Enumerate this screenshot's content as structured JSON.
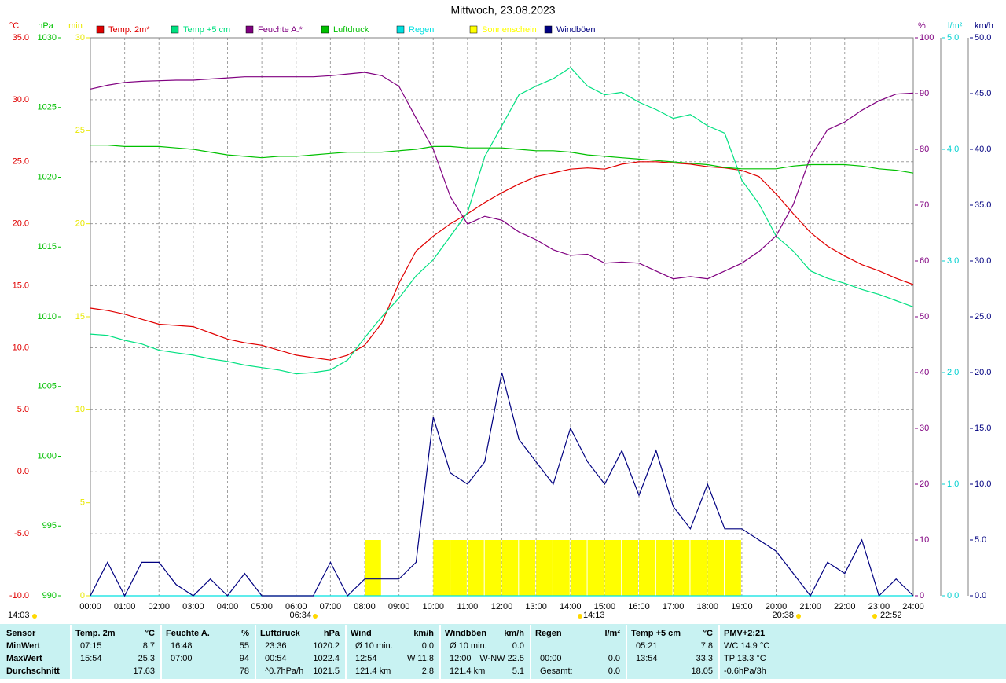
{
  "chart_data": {
    "type": "multi",
    "title": "Mittwoch, 23.08.2023",
    "xlim": [
      0,
      24
    ],
    "xticks": [
      {
        "value": 0,
        "label": "00:00"
      },
      {
        "value": 1,
        "label": "01:00"
      },
      {
        "value": 2,
        "label": "02:00"
      },
      {
        "value": 3,
        "label": "03:00"
      },
      {
        "value": 4,
        "label": "04:00"
      },
      {
        "value": 5,
        "label": "05:00"
      },
      {
        "value": 6,
        "label": "06:00"
      },
      {
        "value": 7,
        "label": "07:00"
      },
      {
        "value": 8,
        "label": "08:00"
      },
      {
        "value": 9,
        "label": "09:00"
      },
      {
        "value": 10,
        "label": "10:00"
      },
      {
        "value": 11,
        "label": "11:00"
      },
      {
        "value": 12,
        "label": "12:00"
      },
      {
        "value": 13,
        "label": "13:00"
      },
      {
        "value": 14,
        "label": "14:00"
      },
      {
        "value": 15,
        "label": "15:00"
      },
      {
        "value": 16,
        "label": "16:00"
      },
      {
        "value": 17,
        "label": "17:00"
      },
      {
        "value": 18,
        "label": "18:00"
      },
      {
        "value": 19,
        "label": "19:00"
      },
      {
        "value": 20,
        "label": "20:00"
      },
      {
        "value": 21,
        "label": "21:00"
      },
      {
        "value": 22,
        "label": "22:00"
      },
      {
        "value": 23,
        "label": "23:00"
      },
      {
        "value": 24,
        "label": "24:00"
      }
    ],
    "grid": true,
    "axes": {
      "temp": {
        "label": "°C",
        "color": "#e00000",
        "lim": [
          -10,
          35
        ],
        "ticks": [
          {
            "value": -10,
            "label": "-10.0"
          },
          {
            "value": -5,
            "label": "-5.0"
          },
          {
            "value": 0,
            "label": "0.0"
          },
          {
            "value": 5,
            "label": "5.0"
          },
          {
            "value": 10,
            "label": "10.0"
          },
          {
            "value": 15,
            "label": "15.0"
          },
          {
            "value": 20,
            "label": "20.0"
          },
          {
            "value": 25,
            "label": "25.0"
          },
          {
            "value": 30,
            "label": "30.0"
          },
          {
            "value": 35,
            "label": "35.0"
          }
        ]
      },
      "hpa": {
        "label": "hPa",
        "color": "#00c000",
        "lim": [
          990,
          1030
        ],
        "ticks": [
          990,
          995,
          1000,
          1005,
          1010,
          1015,
          1020,
          1025,
          1030
        ]
      },
      "min": {
        "label": "min",
        "color": "#e8e800",
        "lim": [
          0,
          30
        ],
        "ticks": [
          0,
          5,
          10,
          15,
          20,
          25,
          30
        ]
      },
      "pct": {
        "label": "%",
        "color": "#800080",
        "lim": [
          0,
          100
        ],
        "ticks": [
          0,
          10,
          20,
          30,
          40,
          50,
          60,
          70,
          80,
          90,
          100
        ]
      },
      "rain": {
        "label": "l/m²",
        "color": "#00d0d0",
        "lim": [
          0,
          5
        ],
        "ticks": [
          {
            "value": 0,
            "label": "0.0"
          },
          {
            "value": 1,
            "label": "1.0"
          },
          {
            "value": 2,
            "label": "2.0"
          },
          {
            "value": 3,
            "label": "3.0"
          },
          {
            "value": 4,
            "label": "4.0"
          },
          {
            "value": 5,
            "label": "5.0"
          }
        ]
      },
      "wind": {
        "label": "km/h",
        "color": "#000080",
        "lim": [
          0,
          50
        ],
        "ticks": [
          {
            "value": 0,
            "label": "0.0"
          },
          {
            "value": 5,
            "label": "5.0"
          },
          {
            "value": 10,
            "label": "10.0"
          },
          {
            "value": 15,
            "label": "15.0"
          },
          {
            "value": 20,
            "label": "20.0"
          },
          {
            "value": 25,
            "label": "25.0"
          },
          {
            "value": 30,
            "label": "30.0"
          },
          {
            "value": 35,
            "label": "35.0"
          },
          {
            "value": 40,
            "label": "40.0"
          },
          {
            "value": 45,
            "label": "45.0"
          },
          {
            "value": 50,
            "label": "50.0"
          }
        ]
      }
    },
    "x": [
      0,
      0.5,
      1,
      1.5,
      2,
      2.5,
      3,
      3.5,
      4,
      4.5,
      5,
      5.5,
      6,
      6.5,
      7,
      7.5,
      8,
      8.5,
      9,
      9.5,
      10,
      10.5,
      11,
      11.5,
      12,
      12.5,
      13,
      13.5,
      14,
      14.5,
      15,
      15.5,
      16,
      16.5,
      17,
      17.5,
      18,
      18.5,
      19,
      19.5,
      20,
      20.5,
      21,
      21.5,
      22,
      22.5,
      23,
      23.5,
      24
    ],
    "series": [
      {
        "name": "Temp. 2m*",
        "color": "#e00000",
        "axis": "temp",
        "kind": "line",
        "values": [
          13.2,
          13.0,
          12.7,
          12.3,
          11.9,
          11.8,
          11.7,
          11.2,
          10.7,
          10.4,
          10.2,
          9.8,
          9.4,
          9.2,
          9.0,
          9.4,
          10.2,
          12.0,
          15.2,
          17.8,
          19.0,
          20.0,
          20.8,
          21.7,
          22.5,
          23.2,
          23.8,
          24.1,
          24.4,
          24.5,
          24.4,
          24.8,
          25.0,
          25.0,
          24.9,
          24.8,
          24.6,
          24.5,
          24.3,
          23.8,
          22.4,
          20.8,
          19.3,
          18.2,
          17.4,
          16.7,
          16.2,
          15.6,
          15.1
        ]
      },
      {
        "name": "Temp +5 cm",
        "color": "#00e080",
        "axis": "temp",
        "kind": "line",
        "values": [
          11.1,
          11.0,
          10.6,
          10.3,
          9.8,
          9.6,
          9.4,
          9.1,
          8.9,
          8.6,
          8.4,
          8.2,
          7.9,
          8.0,
          8.2,
          9.0,
          10.8,
          12.5,
          14.0,
          15.8,
          17.1,
          19.0,
          20.9,
          25.4,
          27.9,
          30.4,
          31.1,
          31.7,
          32.6,
          31.1,
          30.4,
          30.6,
          29.8,
          29.2,
          28.5,
          28.8,
          27.9,
          27.3,
          23.5,
          21.6,
          19.0,
          17.8,
          16.2,
          15.6,
          15.2,
          14.7,
          14.3,
          13.8,
          13.3
        ]
      },
      {
        "name": "Feuchte A.*",
        "color": "#800080",
        "axis": "pct",
        "kind": "line",
        "values": [
          90.8,
          91.5,
          92.0,
          92.2,
          92.3,
          92.4,
          92.4,
          92.6,
          92.8,
          93.0,
          93.0,
          93.0,
          93.0,
          93.0,
          93.2,
          93.5,
          93.8,
          93.2,
          91.3,
          85.6,
          80.0,
          71.5,
          66.6,
          68.0,
          67.3,
          65.2,
          63.8,
          62.0,
          61.0,
          61.2,
          59.6,
          59.8,
          59.6,
          58.2,
          56.8,
          57.2,
          56.8,
          58.2,
          59.6,
          61.7,
          64.5,
          70.1,
          78.6,
          83.5,
          84.9,
          87.0,
          88.7,
          89.9,
          90.1
        ]
      },
      {
        "name": "Luftdruck",
        "color": "#00c000",
        "axis": "hpa",
        "kind": "line",
        "values": [
          1022.3,
          1022.3,
          1022.2,
          1022.2,
          1022.2,
          1022.1,
          1022.0,
          1021.8,
          1021.6,
          1021.5,
          1021.4,
          1021.5,
          1021.5,
          1021.6,
          1021.7,
          1021.8,
          1021.8,
          1021.8,
          1021.9,
          1022.0,
          1022.2,
          1022.2,
          1022.1,
          1022.1,
          1022.1,
          1022.0,
          1021.9,
          1021.9,
          1021.8,
          1021.6,
          1021.5,
          1021.4,
          1021.3,
          1021.2,
          1021.1,
          1021.0,
          1020.9,
          1020.7,
          1020.6,
          1020.6,
          1020.6,
          1020.8,
          1020.9,
          1020.9,
          1020.9,
          1020.8,
          1020.6,
          1020.5,
          1020.3
        ]
      },
      {
        "name": "Regen",
        "color": "#00e0e0",
        "axis": "rain",
        "kind": "line",
        "values": [
          0,
          0,
          0,
          0,
          0,
          0,
          0,
          0,
          0,
          0,
          0,
          0,
          0,
          0,
          0,
          0,
          0,
          0,
          0,
          0,
          0,
          0,
          0,
          0,
          0,
          0,
          0,
          0,
          0,
          0,
          0,
          0,
          0,
          0,
          0,
          0,
          0,
          0,
          0,
          0,
          0,
          0,
          0,
          0,
          0,
          0,
          0,
          0,
          0
        ]
      },
      {
        "name": "Sonnenschein",
        "color": "#ffff00",
        "axis": "min",
        "kind": "bar",
        "values": [
          0,
          0,
          0,
          0,
          0,
          0,
          0,
          0,
          0,
          0,
          0,
          0,
          0,
          0,
          0,
          0,
          3,
          0,
          0,
          0,
          3,
          3,
          3,
          3,
          3,
          3,
          3,
          3,
          3,
          3,
          3,
          3,
          3,
          3,
          3,
          3,
          3,
          3,
          0,
          0,
          0,
          0,
          0,
          0,
          0,
          0,
          0,
          0,
          null
        ]
      },
      {
        "name": "Windböen",
        "color": "#000080",
        "axis": "wind",
        "kind": "line",
        "values": [
          0,
          3,
          0,
          3,
          3,
          1,
          0,
          1.5,
          0,
          2,
          0,
          0,
          0,
          0,
          3,
          0,
          1.5,
          1.5,
          1.5,
          3,
          16,
          11,
          10,
          12,
          20,
          14,
          12,
          10,
          15,
          12,
          10,
          13,
          9,
          13,
          8,
          6,
          10,
          6,
          6,
          5,
          4,
          2,
          0,
          3,
          2,
          5,
          0,
          1.5,
          0
        ]
      }
    ],
    "markers": [
      {
        "label": "14:03"
      },
      {
        "label": "06:34"
      },
      {
        "label": "14:13"
      },
      {
        "label": "20:38"
      },
      {
        "label": "22:52"
      }
    ]
  },
  "table": {
    "row_labels": [
      "Sensor",
      "MinWert",
      "MaxWert",
      "Durchschnitt"
    ],
    "sections": [
      {
        "header": [
          "Temp. 2m",
          "°C"
        ],
        "rows": [
          [
            "07:15",
            "8.7"
          ],
          [
            "15:54",
            "25.3"
          ],
          [
            null,
            "17.63"
          ]
        ]
      },
      {
        "header": [
          "Feuchte A.",
          "%"
        ],
        "rows": [
          [
            "16:48",
            "55"
          ],
          [
            "07:00",
            "94"
          ],
          [
            null,
            "78"
          ]
        ]
      },
      {
        "header": [
          "Luftdruck",
          "hPa"
        ],
        "rows": [
          [
            "23:36",
            "1020.2"
          ],
          [
            "00:54",
            "1022.4"
          ],
          [
            "^0.7hPa/h",
            "1021.5"
          ]
        ]
      },
      {
        "header": [
          "Wind",
          "km/h"
        ],
        "rows": [
          [
            "Ø 10 min.",
            "0.0"
          ],
          [
            "12:54",
            "W 11.8"
          ],
          [
            "121.4 km",
            "2.8"
          ]
        ]
      },
      {
        "header": [
          "Windböen",
          "km/h"
        ],
        "rows": [
          [
            "Ø 10 min.",
            "0.0"
          ],
          [
            "12:00",
            "W-NW 22.5"
          ],
          [
            "121.4 km",
            "5.1"
          ]
        ]
      },
      {
        "header": [
          "Regen",
          "l/m²"
        ],
        "rows": [
          [
            null,
            null
          ],
          [
            "00:00",
            "0.0"
          ],
          [
            "Gesamt:",
            "0.0"
          ]
        ]
      },
      {
        "header": [
          "Temp +5 cm",
          "°C"
        ],
        "rows": [
          [
            "05:21",
            "7.8"
          ],
          [
            "13:54",
            "33.3"
          ],
          [
            null,
            "18.05"
          ]
        ]
      },
      {
        "header": [
          "PMV+2:21"
        ],
        "rows": [
          [
            "WC 14.9 °C"
          ],
          [
            "TP 13.3 °C"
          ],
          [
            "-0.6hPa/3h"
          ]
        ]
      }
    ]
  }
}
